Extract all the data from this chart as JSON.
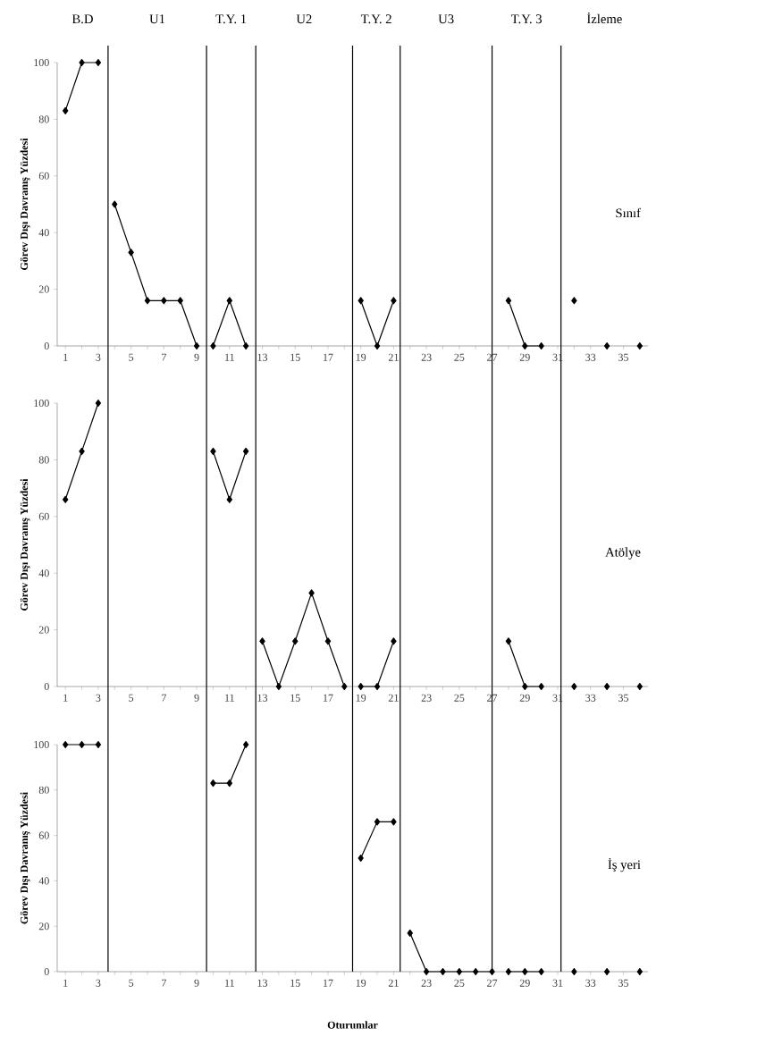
{
  "chart_data": [
    {
      "type": "line",
      "title": "Sınıf",
      "ylabel": "Görev Dışı Davranış Yüzdesi",
      "annotations": [
        "B.D",
        "U1",
        "T.Y. 1",
        "U2",
        "T.Y. 2",
        "U3",
        "T.Y. 3",
        "İzleme"
      ],
      "xlim": [
        0.5,
        36.5
      ],
      "ylim": [
        0,
        100
      ],
      "yticks": [
        0,
        20,
        40,
        60,
        80,
        100
      ],
      "xticks": [
        1,
        {
          "value": 2,
          "label": null
        },
        3,
        {
          "value": 4,
          "label": null
        },
        5,
        {
          "value": 6,
          "label": null
        },
        7,
        {
          "value": 8,
          "label": null
        },
        9,
        {
          "value": 10,
          "label": null
        },
        11,
        {
          "value": 12,
          "label": null
        },
        13,
        {
          "value": 14,
          "label": null
        },
        15,
        {
          "value": 16,
          "label": null
        },
        17,
        {
          "value": 18,
          "label": null
        },
        19,
        {
          "value": 20,
          "label": null
        },
        21,
        {
          "value": 22,
          "label": null
        },
        23,
        {
          "value": 24,
          "label": null
        },
        25,
        {
          "value": 26,
          "label": null
        },
        27,
        {
          "value": 28,
          "label": null
        },
        29,
        {
          "value": 30,
          "label": null
        },
        31,
        {
          "value": 32,
          "label": null
        },
        33,
        {
          "value": 34,
          "label": null
        },
        35,
        {
          "value": 36,
          "label": null
        }
      ],
      "marker": "diamond",
      "line_style": "solid",
      "ref_lines": [
        {
          "axis": "x",
          "value": 3.6
        },
        {
          "axis": "x",
          "value": 9.6
        },
        {
          "axis": "x",
          "value": 12.6
        },
        {
          "axis": "x",
          "value": 18.5
        },
        {
          "axis": "x",
          "value": 21.4
        },
        {
          "axis": "x",
          "value": 27
        },
        {
          "axis": "x",
          "value": 31.2
        }
      ],
      "series": [
        {
          "color": "#000000",
          "x": [
            1,
            2,
            3
          ],
          "values": [
            83,
            100,
            100
          ]
        },
        {
          "color": "#000000",
          "x": [
            4,
            5,
            6,
            7,
            8,
            9
          ],
          "values": [
            50,
            33,
            16,
            16,
            16,
            0
          ]
        },
        {
          "color": "#000000",
          "x": [
            10,
            11,
            12
          ],
          "values": [
            0,
            16,
            0
          ]
        },
        {
          "color": "#000000",
          "x": [
            19,
            20,
            21
          ],
          "values": [
            16,
            0,
            16
          ]
        },
        {
          "color": "#000000",
          "x": [
            28,
            29,
            30
          ],
          "values": [
            16,
            0,
            0
          ]
        },
        {
          "color": "#000000",
          "type": "scatter",
          "x": [
            32,
            34,
            36
          ],
          "values": [
            16,
            0,
            0
          ]
        }
      ]
    },
    {
      "type": "line",
      "title": "Atölye",
      "ylabel": "Görev Dışı Davranış Yüzdesi",
      "xlim": [
        0.5,
        36.5
      ],
      "ylim": [
        0,
        100
      ],
      "yticks": [
        0,
        20,
        40,
        60,
        80,
        100
      ],
      "xticks": [
        1,
        {
          "value": 2,
          "label": null
        },
        3,
        {
          "value": 4,
          "label": null
        },
        5,
        {
          "value": 6,
          "label": null
        },
        7,
        {
          "value": 8,
          "label": null
        },
        9,
        {
          "value": 10,
          "label": null
        },
        11,
        {
          "value": 12,
          "label": null
        },
        13,
        {
          "value": 14,
          "label": null
        },
        15,
        {
          "value": 16,
          "label": null
        },
        17,
        {
          "value": 18,
          "label": null
        },
        19,
        {
          "value": 20,
          "label": null
        },
        21,
        {
          "value": 22,
          "label": null
        },
        23,
        {
          "value": 24,
          "label": null
        },
        25,
        {
          "value": 26,
          "label": null
        },
        27,
        {
          "value": 28,
          "label": null
        },
        29,
        {
          "value": 30,
          "label": null
        },
        31,
        {
          "value": 32,
          "label": null
        },
        33,
        {
          "value": 34,
          "label": null
        },
        35,
        {
          "value": 36,
          "label": null
        }
      ],
      "marker": "diamond",
      "line_style": "solid",
      "ref_lines": [
        {
          "axis": "x",
          "value": 3.6
        },
        {
          "axis": "x",
          "value": 9.6
        },
        {
          "axis": "x",
          "value": 12.6
        },
        {
          "axis": "x",
          "value": 18.5
        },
        {
          "axis": "x",
          "value": 21.4
        },
        {
          "axis": "x",
          "value": 27
        },
        {
          "axis": "x",
          "value": 31.2
        }
      ],
      "series": [
        {
          "color": "#000000",
          "x": [
            1,
            2,
            3
          ],
          "values": [
            66,
            83,
            100
          ]
        },
        {
          "color": "#000000",
          "x": [
            10,
            11,
            12
          ],
          "values": [
            83,
            66,
            83
          ]
        },
        {
          "color": "#000000",
          "x": [
            13,
            14,
            15,
            16,
            17,
            18
          ],
          "values": [
            16,
            0,
            16,
            33,
            16,
            0
          ]
        },
        {
          "color": "#000000",
          "x": [
            19,
            20,
            21
          ],
          "values": [
            0,
            0,
            16
          ]
        },
        {
          "color": "#000000",
          "x": [
            28,
            29,
            30
          ],
          "values": [
            16,
            0,
            0
          ]
        },
        {
          "color": "#000000",
          "type": "scatter",
          "x": [
            32,
            34,
            36
          ],
          "values": [
            0,
            0,
            0
          ]
        }
      ]
    },
    {
      "type": "line",
      "title": "İş yeri",
      "ylabel": "Görev Dışı Davranış Yüzdesi",
      "xlabel": "Oturumlar",
      "xlim": [
        0.5,
        36.5
      ],
      "ylim": [
        0,
        100
      ],
      "yticks": [
        0,
        20,
        40,
        60,
        80,
        100
      ],
      "xticks": [
        1,
        {
          "value": 2,
          "label": null
        },
        3,
        {
          "value": 4,
          "label": null
        },
        5,
        {
          "value": 6,
          "label": null
        },
        7,
        {
          "value": 8,
          "label": null
        },
        9,
        {
          "value": 10,
          "label": null
        },
        11,
        {
          "value": 12,
          "label": null
        },
        13,
        {
          "value": 14,
          "label": null
        },
        15,
        {
          "value": 16,
          "label": null
        },
        17,
        {
          "value": 18,
          "label": null
        },
        19,
        {
          "value": 20,
          "label": null
        },
        21,
        {
          "value": 22,
          "label": null
        },
        23,
        {
          "value": 24,
          "label": null
        },
        25,
        {
          "value": 26,
          "label": null
        },
        27,
        {
          "value": 28,
          "label": null
        },
        29,
        {
          "value": 30,
          "label": null
        },
        31,
        {
          "value": 32,
          "label": null
        },
        33,
        {
          "value": 34,
          "label": null
        },
        35,
        {
          "value": 36,
          "label": null
        }
      ],
      "marker": "diamond",
      "line_style": "solid",
      "ref_lines": [
        {
          "axis": "x",
          "value": 3.6
        },
        {
          "axis": "x",
          "value": 9.6
        },
        {
          "axis": "x",
          "value": 12.6
        },
        {
          "axis": "x",
          "value": 18.5
        },
        {
          "axis": "x",
          "value": 21.4
        },
        {
          "axis": "x",
          "value": 27
        },
        {
          "axis": "x",
          "value": 31.2
        }
      ],
      "series": [
        {
          "color": "#000000",
          "x": [
            1,
            2,
            3
          ],
          "values": [
            100,
            100,
            100
          ]
        },
        {
          "color": "#000000",
          "x": [
            10,
            11,
            12
          ],
          "values": [
            83,
            83,
            100
          ]
        },
        {
          "color": "#000000",
          "x": [
            19,
            20,
            21
          ],
          "values": [
            50,
            66,
            66
          ]
        },
        {
          "color": "#000000",
          "x": [
            22,
            23,
            24,
            25,
            26,
            27
          ],
          "values": [
            17,
            0,
            0,
            0,
            0,
            0
          ]
        },
        {
          "color": "#000000",
          "x": [
            28,
            29,
            30
          ],
          "values": [
            0,
            0,
            0
          ]
        },
        {
          "color": "#000000",
          "type": "scatter",
          "x": [
            32,
            34,
            36
          ],
          "values": [
            0,
            0,
            0
          ]
        }
      ]
    }
  ]
}
